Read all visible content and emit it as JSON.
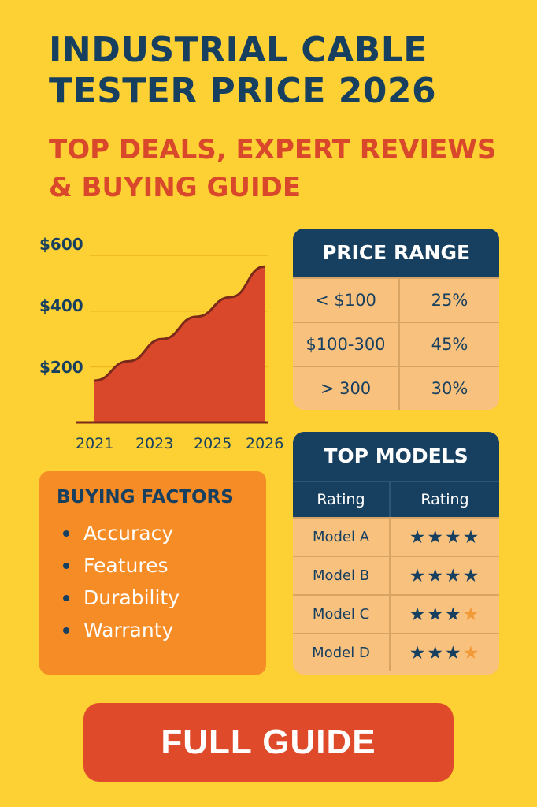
{
  "header": {
    "title": "INDUSTRIAL CABLE TESTER PRICE 2026",
    "subtitle": "TOP DEALS, EXPERT REVIEWS & BUYING GUIDE"
  },
  "chart_data": {
    "type": "area",
    "x": [
      "2021",
      "2022",
      "2023",
      "2024",
      "2025",
      "2026"
    ],
    "values": [
      150,
      220,
      300,
      380,
      450,
      560
    ],
    "xticks": [
      "2021",
      "2023",
      "2025",
      "2026"
    ],
    "yticks": [
      "$600",
      "$400",
      "$200"
    ],
    "ylim": [
      0,
      640
    ],
    "color": "#D9482B"
  },
  "price_range": {
    "title": "PRICE RANGE",
    "rows": [
      {
        "range": "< $100",
        "share": "25%"
      },
      {
        "range": "$100-300",
        "share": "45%"
      },
      {
        "range": "> 300",
        "share": "30%"
      }
    ]
  },
  "top_models": {
    "title": "TOP MODELS",
    "col1": "Rating",
    "col2": "Rating",
    "rows": [
      {
        "model": "Model A",
        "full": 4,
        "half": 0
      },
      {
        "model": "Model B",
        "full": 4,
        "half": 0
      },
      {
        "model": "Model C",
        "full": 3,
        "half": 1
      },
      {
        "model": "Model D",
        "full": 3,
        "half": 1
      }
    ]
  },
  "buying_factors": {
    "title": "BUYING FACTORS",
    "items": [
      "Accuracy",
      "Features",
      "Durability",
      "Warranty"
    ]
  },
  "cta": {
    "label": "FULL GUIDE"
  }
}
